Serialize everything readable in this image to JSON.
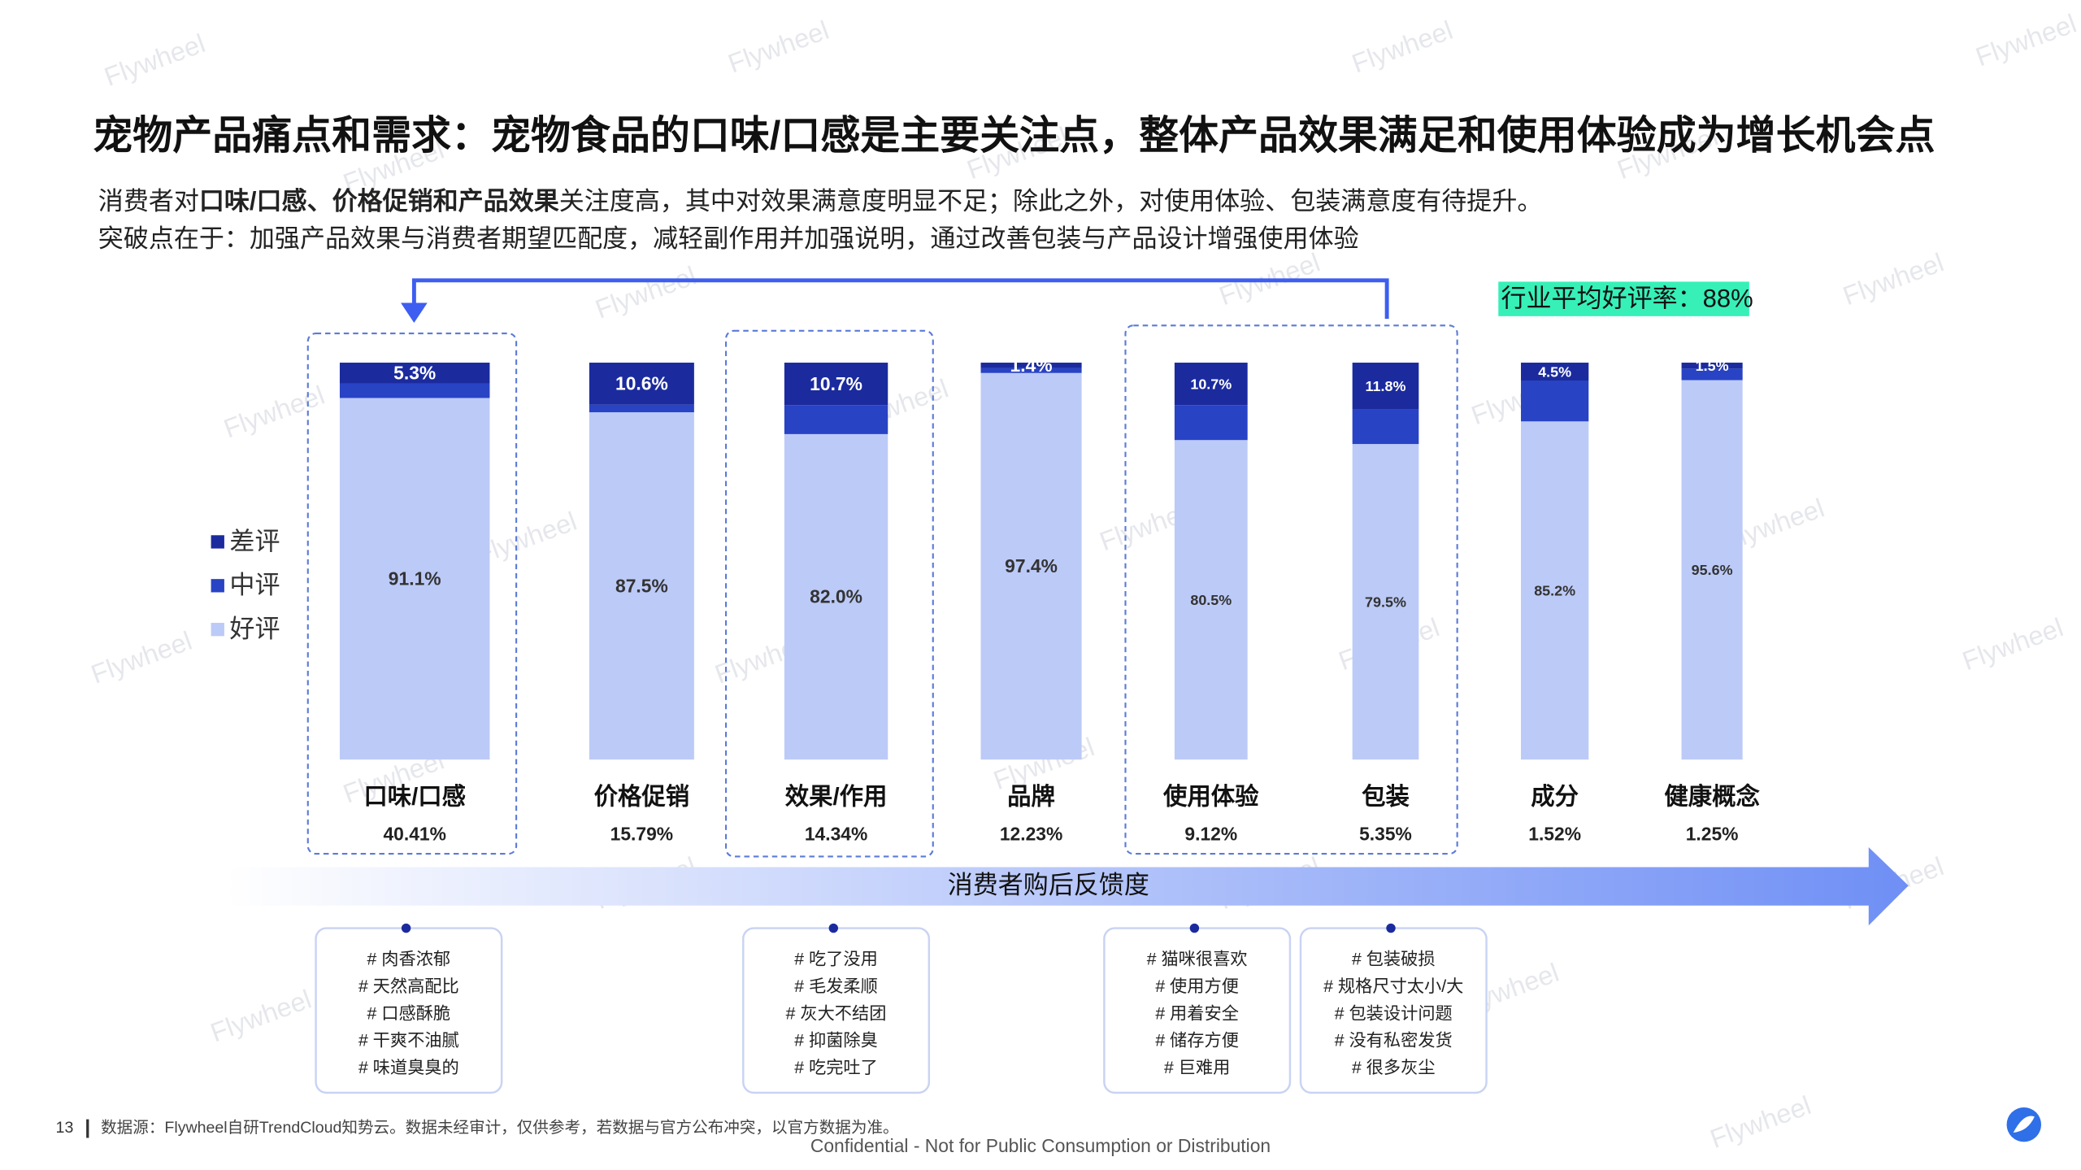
{
  "title": "宠物产品痛点和需求：宠物食品的口味/口感是主要关注点，整体产品效果满足和使用体验成为增长机会点",
  "subtitle": {
    "line1": [
      "消费者对",
      "口味/口感、价格促销和产品效果",
      "关注度高，其中对效果满意度明显不足；除此之外，对使用体验、包装满意度有待提升。"
    ],
    "line2": "突破点在于：加强产品效果与消费者期望匹配度，减轻副作用并加强说明，通过改善包装与产品设计增强使用体验"
  },
  "chart_data": {
    "type": "bar",
    "stacked": true,
    "categories": [
      "口味/口感",
      "价格促销",
      "效果/作用",
      "品牌",
      "使用体验",
      "包装",
      "成分",
      "健康概念"
    ],
    "share_labels": [
      "40.41%",
      "15.79%",
      "14.34%",
      "12.23%",
      "9.12%",
      "5.35%",
      "1.52%",
      "1.25%"
    ],
    "series": [
      {
        "name": "差评",
        "color": "#1b2b9e",
        "values": [
          5.3,
          10.6,
          10.7,
          1.4,
          10.7,
          11.8,
          4.5,
          1.5
        ],
        "value_labels": [
          "5.3%",
          "10.6%",
          "10.7%",
          "1.4%",
          "10.7%",
          "11.8%",
          "4.5%",
          "1.5%"
        ]
      },
      {
        "name": "中评",
        "color": "#2843c4",
        "values": [
          3.6,
          1.9,
          7.3,
          1.2,
          8.8,
          8.7,
          10.3,
          2.9
        ]
      },
      {
        "name": "好评",
        "color": "#bccaf7",
        "values": [
          91.1,
          87.5,
          82.0,
          97.4,
          80.5,
          79.5,
          85.2,
          95.6
        ],
        "value_labels": [
          "91.1%",
          "87.5%",
          "82.0%",
          "97.4%",
          "80.5%",
          "79.5%",
          "85.2%",
          "95.6%"
        ]
      }
    ],
    "ylim": [
      0,
      100
    ],
    "legend": "left",
    "annotation": "行业平均好评率：88%",
    "axis_label": "消费者购后反馈度"
  },
  "tags": [
    [
      "# 肉香浓郁",
      "# 天然高配比",
      "# 口感酥脆",
      "# 干爽不油腻",
      "# 味道臭臭的"
    ],
    [
      "# 吃了没用",
      "# 毛发柔顺",
      "# 灰大不结团",
      "# 抑菌除臭",
      "# 吃完吐了"
    ],
    [
      "# 猫咪很喜欢",
      "# 使用方便",
      "# 用着安全",
      "# 储存方便",
      "# 巨难用"
    ],
    [
      "# 包装破损",
      "# 规格尺寸太小/大",
      "# 包装设计问题",
      "# 没有私密发货",
      "# 很多灰尘"
    ]
  ],
  "footer": {
    "page": "13",
    "source": "数据源：Flywheel自研TrendCloud知势云。数据未经审计，仅供参考，若数据与官方公布冲突，以官方数据为准。",
    "confidential": "Confidential - Not for Public Consumption or Distribution"
  },
  "watermark": "Flywheel"
}
